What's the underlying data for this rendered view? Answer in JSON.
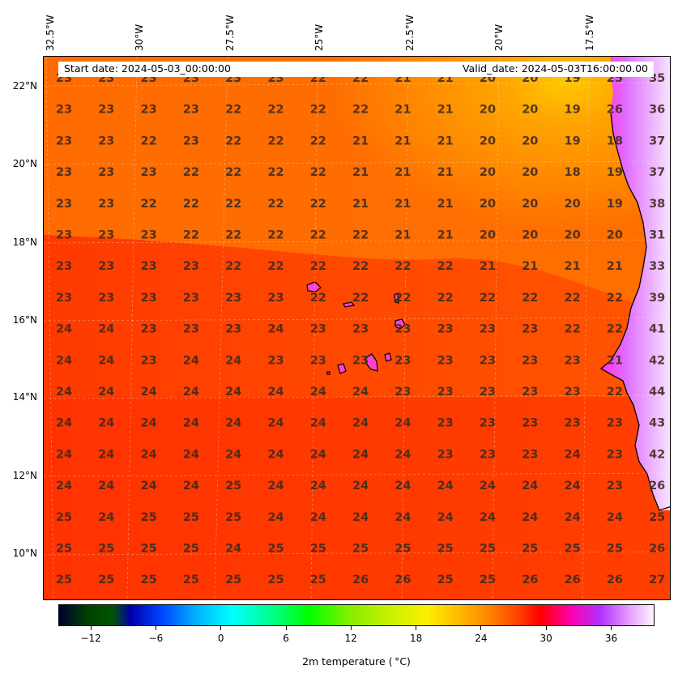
{
  "header": {
    "start_date": "Start date: 2024-05-03_00:00:00",
    "valid_date": "Valid_date: 2024-05-03T16:00:00.00"
  },
  "map": {
    "variable": "2m temperature",
    "lon_labels": [
      "32.5°W",
      "30°W",
      "27.5°W",
      "25°W",
      "22.5°W",
      "20°W",
      "17.5°W"
    ],
    "lat_labels": [
      "22°N",
      "20°N",
      "18°N",
      "16°N",
      "14°N",
      "12°N",
      "10°N"
    ],
    "grid_values": [
      [
        23,
        23,
        23,
        23,
        23,
        23,
        22,
        22,
        21,
        21,
        20,
        20,
        19,
        25,
        35
      ],
      [
        23,
        23,
        23,
        23,
        22,
        22,
        22,
        22,
        21,
        21,
        20,
        20,
        19,
        26,
        36
      ],
      [
        23,
        23,
        22,
        23,
        22,
        22,
        22,
        21,
        21,
        21,
        20,
        20,
        19,
        18,
        37
      ],
      [
        23,
        23,
        23,
        22,
        22,
        22,
        22,
        21,
        21,
        21,
        20,
        20,
        18,
        19,
        37
      ],
      [
        23,
        23,
        22,
        22,
        22,
        22,
        22,
        21,
        21,
        21,
        20,
        20,
        20,
        19,
        38
      ],
      [
        23,
        23,
        23,
        22,
        22,
        22,
        22,
        22,
        21,
        21,
        20,
        20,
        20,
        20,
        31
      ],
      [
        23,
        23,
        23,
        23,
        22,
        22,
        22,
        22,
        22,
        22,
        21,
        21,
        21,
        21,
        33
      ],
      [
        23,
        23,
        23,
        23,
        23,
        23,
        22,
        22,
        22,
        22,
        22,
        22,
        22,
        22,
        39
      ],
      [
        24,
        24,
        23,
        23,
        23,
        24,
        23,
        23,
        23,
        23,
        23,
        23,
        22,
        22,
        41
      ],
      [
        24,
        24,
        23,
        24,
        24,
        23,
        23,
        23,
        23,
        23,
        23,
        23,
        23,
        21,
        42
      ],
      [
        24,
        24,
        24,
        24,
        24,
        24,
        24,
        24,
        23,
        23,
        23,
        23,
        23,
        22,
        44
      ],
      [
        24,
        24,
        24,
        24,
        24,
        24,
        24,
        24,
        24,
        23,
        23,
        23,
        23,
        23,
        43
      ],
      [
        24,
        24,
        24,
        24,
        24,
        24,
        24,
        24,
        24,
        23,
        23,
        23,
        24,
        23,
        42
      ],
      [
        24,
        24,
        24,
        24,
        25,
        24,
        24,
        24,
        24,
        24,
        24,
        24,
        24,
        23,
        26
      ],
      [
        25,
        24,
        25,
        25,
        25,
        24,
        24,
        24,
        24,
        24,
        24,
        24,
        24,
        24,
        25
      ],
      [
        25,
        25,
        25,
        25,
        24,
        25,
        25,
        25,
        25,
        25,
        25,
        25,
        25,
        25,
        26
      ],
      [
        25,
        25,
        25,
        25,
        25,
        25,
        25,
        26,
        26,
        25,
        25,
        26,
        26,
        26,
        27
      ]
    ]
  },
  "colorbar": {
    "title": "2m temperature ($^\\circ$C)",
    "ticks": [
      -12,
      -6,
      0,
      6,
      12,
      18,
      24,
      30,
      36
    ],
    "tick_labels": [
      "−12",
      "−6",
      "0",
      "6",
      "12",
      "18",
      "24",
      "30",
      "36"
    ],
    "min": -15,
    "max": 40
  }
}
